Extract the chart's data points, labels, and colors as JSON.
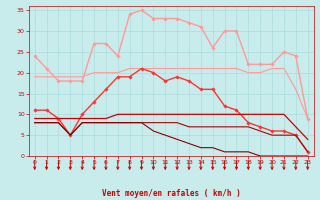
{
  "x": [
    0,
    1,
    2,
    3,
    4,
    5,
    6,
    7,
    8,
    9,
    10,
    11,
    12,
    13,
    14,
    15,
    16,
    17,
    18,
    19,
    20,
    21,
    22,
    23
  ],
  "series": [
    {
      "name": "rafales_max",
      "color": "#FF9999",
      "linewidth": 1.0,
      "marker": "D",
      "markersize": 1.8,
      "values": [
        24,
        21,
        18,
        18,
        18,
        27,
        27,
        24,
        34,
        35,
        33,
        33,
        33,
        32,
        31,
        26,
        30,
        30,
        22,
        22,
        22,
        25,
        24,
        9
      ]
    },
    {
      "name": "rafales_mid",
      "color": "#FF9999",
      "linewidth": 0.8,
      "marker": null,
      "markersize": 0,
      "values": [
        19,
        19,
        19,
        19,
        19,
        20,
        20,
        20,
        21,
        21,
        21,
        21,
        21,
        21,
        21,
        21,
        21,
        21,
        20,
        20,
        21,
        21,
        16,
        9
      ]
    },
    {
      "name": "vent_max",
      "color": "#FF3333",
      "linewidth": 1.0,
      "marker": "D",
      "markersize": 1.8,
      "values": [
        11,
        11,
        9,
        5,
        10,
        13,
        16,
        19,
        19,
        21,
        20,
        18,
        19,
        18,
        16,
        16,
        12,
        11,
        8,
        7,
        6,
        6,
        5,
        1
      ]
    },
    {
      "name": "vent_moyen_top",
      "color": "#CC0000",
      "linewidth": 0.9,
      "marker": null,
      "markersize": 0,
      "values": [
        9,
        9,
        9,
        9,
        9,
        9,
        9,
        10,
        10,
        10,
        10,
        10,
        10,
        10,
        10,
        10,
        10,
        10,
        10,
        10,
        10,
        10,
        7,
        4
      ]
    },
    {
      "name": "vent_moyen_bottom",
      "color": "#AA0000",
      "linewidth": 0.8,
      "marker": null,
      "markersize": 0,
      "values": [
        8,
        8,
        8,
        5,
        8,
        8,
        8,
        8,
        8,
        8,
        8,
        8,
        8,
        7,
        7,
        7,
        7,
        7,
        7,
        6,
        5,
        5,
        5,
        1
      ]
    },
    {
      "name": "vent_min",
      "color": "#880000",
      "linewidth": 0.8,
      "marker": null,
      "markersize": 0,
      "values": [
        8,
        8,
        8,
        5,
        8,
        8,
        8,
        8,
        8,
        8,
        6,
        5,
        4,
        3,
        2,
        2,
        1,
        1,
        1,
        0,
        0,
        0,
        0,
        0
      ]
    }
  ],
  "xlabel": "Vent moyen/en rafales ( km/h )",
  "xlim_lo": -0.5,
  "xlim_hi": 23.5,
  "ylim": [
    0,
    36
  ],
  "yticks": [
    0,
    5,
    10,
    15,
    20,
    25,
    30,
    35
  ],
  "xticks": [
    0,
    1,
    2,
    3,
    4,
    5,
    6,
    7,
    8,
    9,
    10,
    11,
    12,
    13,
    14,
    15,
    16,
    17,
    18,
    19,
    20,
    21,
    22,
    23
  ],
  "bg_color": "#C8ECEC",
  "grid_color": "#AADDDD",
  "xlabel_color": "#CC0000",
  "tick_color": "#CC0000",
  "arrow_color": "#CC0000",
  "spine_color": "#CC0000"
}
